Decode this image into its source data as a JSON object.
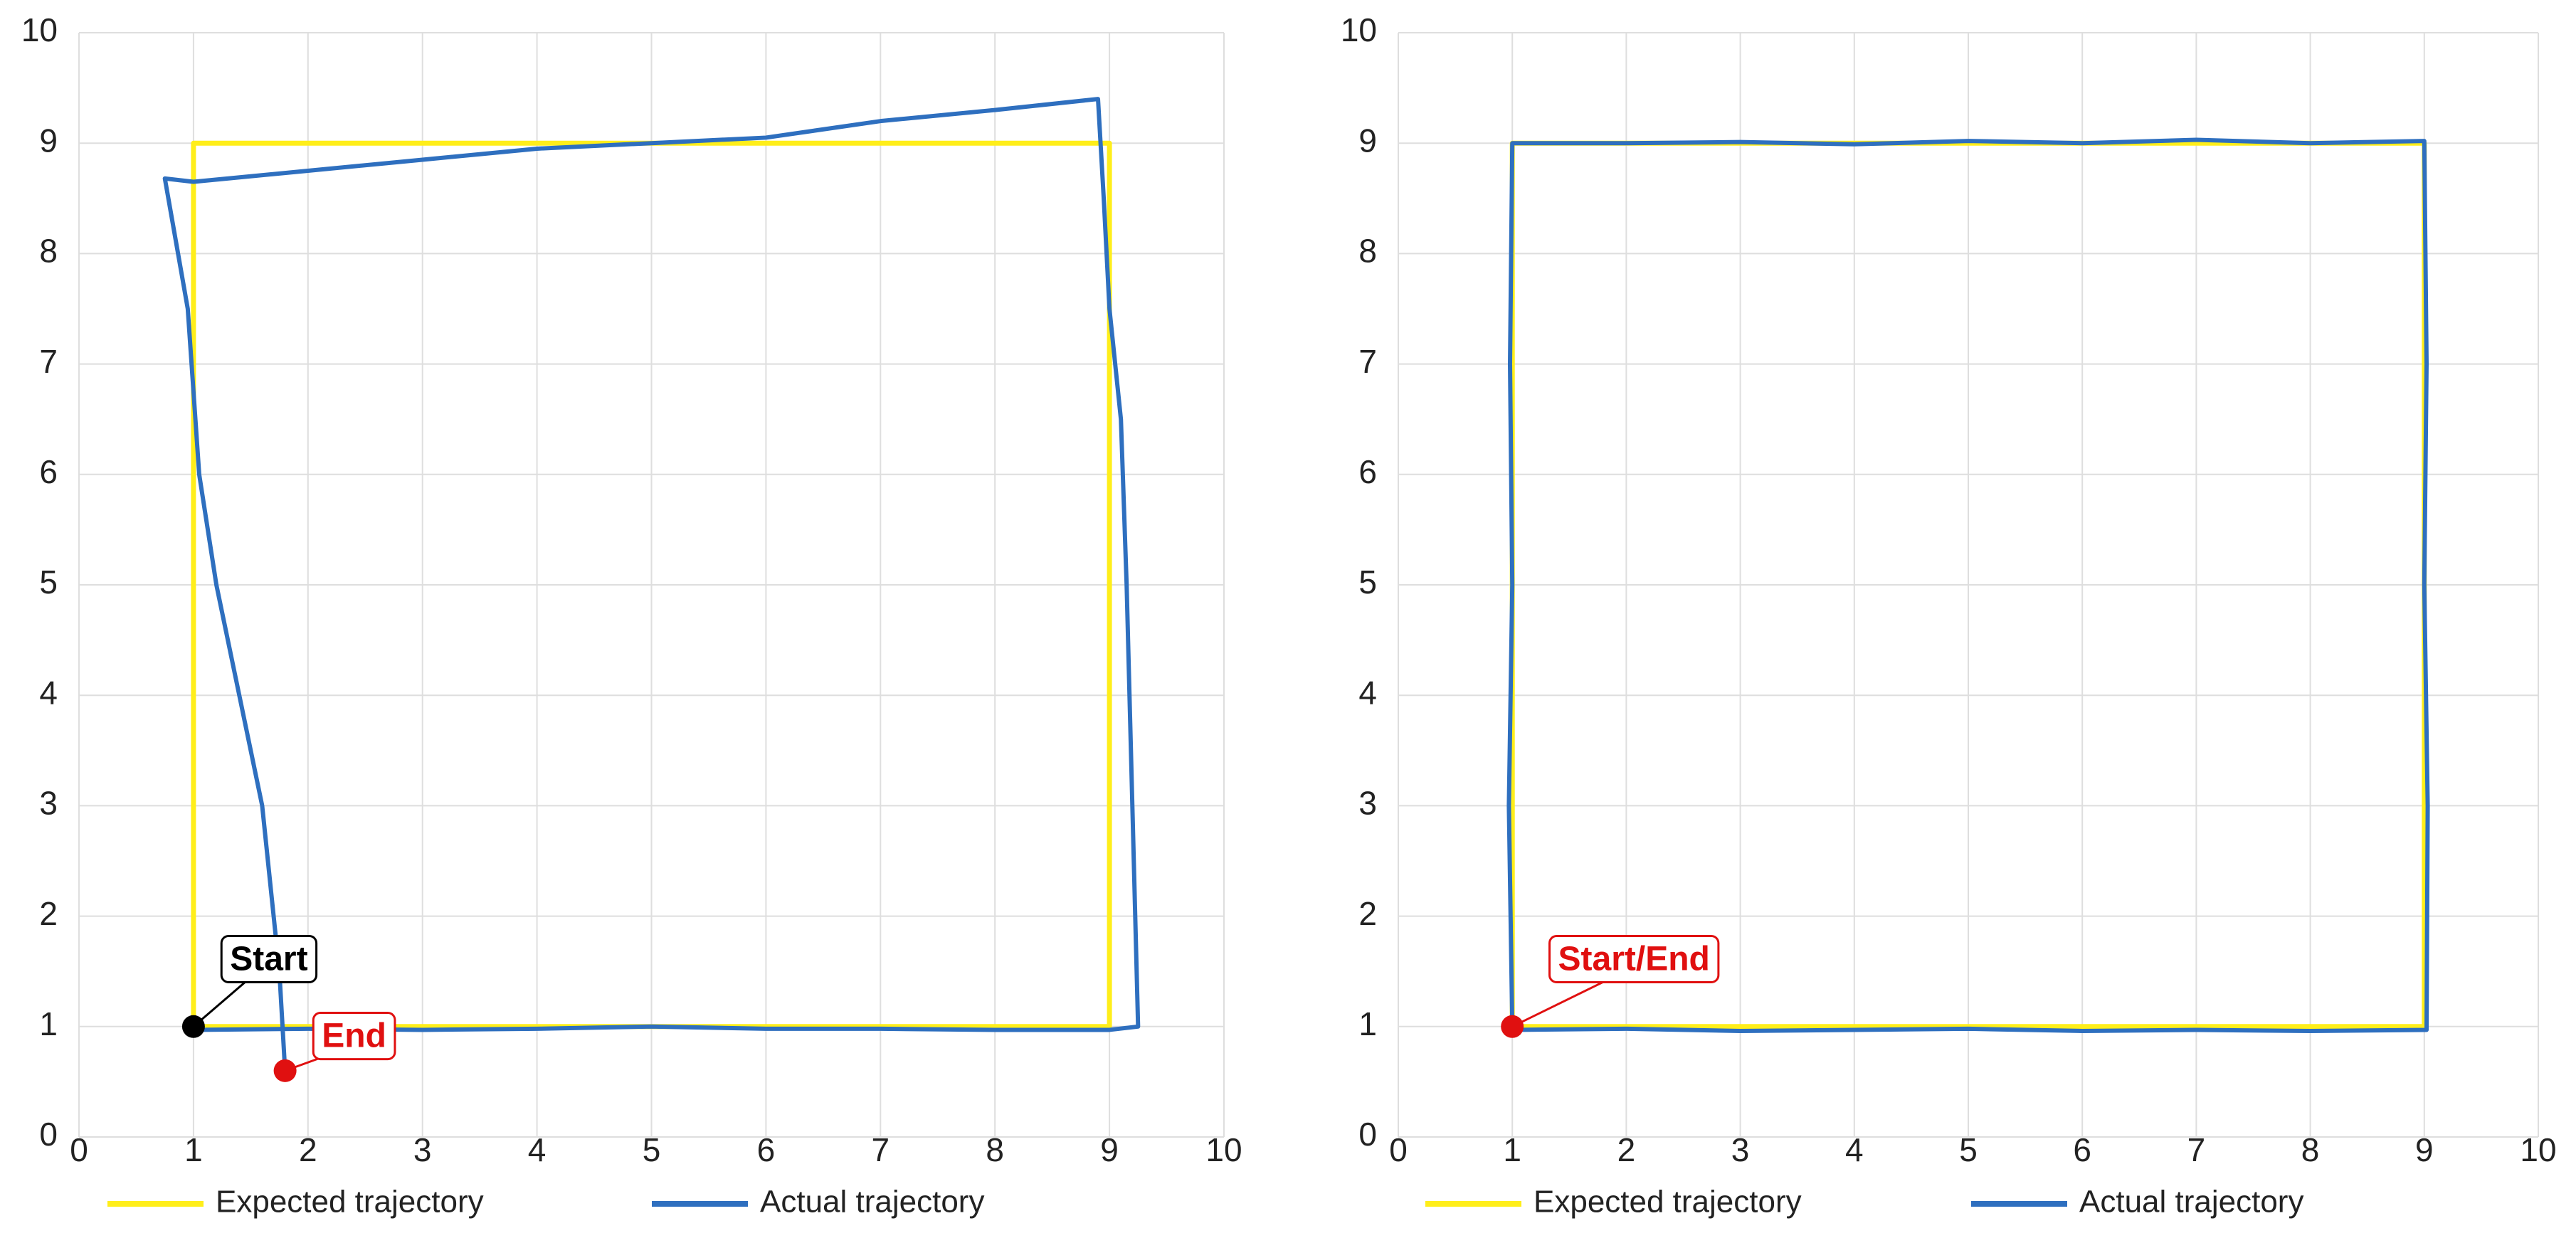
{
  "chart_data": [
    {
      "type": "line",
      "xlim": [
        0,
        10
      ],
      "ylim": [
        0,
        10
      ],
      "xticks": [
        0,
        1,
        2,
        3,
        4,
        5,
        6,
        7,
        8,
        9,
        10
      ],
      "yticks": [
        0,
        1,
        2,
        3,
        4,
        5,
        6,
        7,
        8,
        9,
        10
      ],
      "grid": true,
      "legend": "bottom",
      "series": [
        {
          "name": "Expected trajectory",
          "color": "#ffee1a",
          "x": [
            1,
            9,
            9,
            1,
            1
          ],
          "values": [
            1,
            1,
            9,
            9,
            1
          ]
        },
        {
          "name": "Actual trajectory",
          "color": "#2e6fbf",
          "x": [
            1,
            2,
            3,
            4,
            5,
            6,
            7,
            8,
            9,
            9.25,
            9.2,
            9.15,
            9.1,
            9.0,
            8.95,
            8.9,
            8.0,
            7.0,
            6.0,
            5.0,
            4.0,
            3.0,
            2.0,
            1.0,
            0.75,
            0.95,
            1.05,
            1.2,
            1.4,
            1.6,
            1.75,
            1.8
          ],
          "values": [
            0.97,
            0.98,
            0.97,
            0.98,
            1.0,
            0.98,
            0.98,
            0.97,
            0.97,
            1.0,
            3.0,
            5.0,
            6.5,
            7.5,
            8.5,
            9.4,
            9.3,
            9.2,
            9.05,
            9.0,
            8.95,
            8.85,
            8.75,
            8.65,
            8.68,
            7.5,
            6.0,
            5.0,
            4.0,
            3.0,
            1.5,
            0.6
          ]
        }
      ],
      "annotations": [
        {
          "text": "Start",
          "x": 1,
          "y": 1,
          "color": "#000000"
        },
        {
          "text": "End",
          "x": 1.8,
          "y": 0.6,
          "color": "#e01010"
        }
      ]
    },
    {
      "type": "line",
      "xlim": [
        0,
        10
      ],
      "ylim": [
        0,
        10
      ],
      "xticks": [
        0,
        1,
        2,
        3,
        4,
        5,
        6,
        7,
        8,
        9,
        10
      ],
      "yticks": [
        0,
        1,
        2,
        3,
        4,
        5,
        6,
        7,
        8,
        9,
        10
      ],
      "grid": true,
      "legend": "bottom",
      "series": [
        {
          "name": "Expected trajectory",
          "color": "#ffee1a",
          "x": [
            1,
            9,
            9,
            1,
            1
          ],
          "values": [
            1,
            1,
            9,
            9,
            1
          ]
        },
        {
          "name": "Actual trajectory",
          "color": "#2e6fbf",
          "x": [
            1,
            2,
            3,
            4,
            5,
            6,
            7,
            8,
            9.02,
            9.03,
            9.0,
            9.02,
            9.0,
            8,
            7,
            6,
            5,
            4,
            3,
            2,
            1,
            0.98,
            1.0,
            0.97,
            1.0
          ],
          "values": [
            0.97,
            0.98,
            0.96,
            0.97,
            0.98,
            0.96,
            0.97,
            0.96,
            0.97,
            3,
            5,
            7,
            9.02,
            9.0,
            9.03,
            9.0,
            9.02,
            8.99,
            9.01,
            9.0,
            9.0,
            7,
            5,
            3,
            1
          ]
        }
      ],
      "annotations": [
        {
          "text": "Start/End",
          "x": 1,
          "y": 1,
          "color": "#e01010"
        }
      ]
    }
  ]
}
